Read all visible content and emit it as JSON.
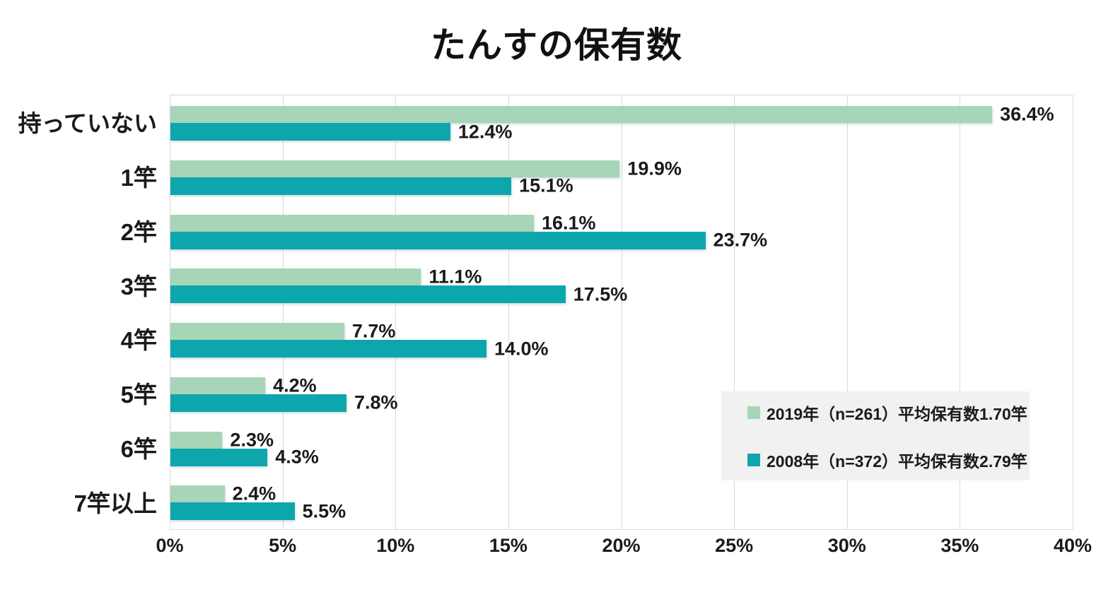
{
  "title": "たんすの保有数",
  "colors": {
    "text": "#1a1a1a",
    "gridline": "#d9d9d9",
    "legend_background": "#f1f1f1",
    "series_2019": "#a7d5b7",
    "series_2008": "#0ea6ad"
  },
  "chart_data": {
    "type": "bar",
    "orientation": "horizontal",
    "title": "たんすの保有数",
    "categories": [
      "持っていない",
      "1竿",
      "2竿",
      "3竿",
      "4竿",
      "5竿",
      "6竿",
      "7竿以上"
    ],
    "series": [
      {
        "id": "2019",
        "name": "2019年（n=261）平均保有数1.70竿",
        "color": "#a7d5b7",
        "values": [
          36.4,
          19.9,
          16.1,
          11.1,
          7.7,
          4.2,
          2.3,
          2.4
        ]
      },
      {
        "id": "2008",
        "name": "2008年（n=372）平均保有数2.79竿",
        "color": "#0ea6ad",
        "values": [
          12.4,
          15.1,
          23.7,
          17.5,
          14.0,
          7.8,
          4.3,
          5.5
        ]
      }
    ],
    "value_suffix": "%",
    "xlabel": "",
    "ylabel": "",
    "xlim": [
      0,
      40
    ],
    "x_ticks": [
      "0%",
      "5%",
      "10%",
      "15%",
      "20%",
      "25%",
      "30%",
      "35%",
      "40%"
    ],
    "grid": true,
    "data_labels": true,
    "legend_position": "inside-right"
  }
}
